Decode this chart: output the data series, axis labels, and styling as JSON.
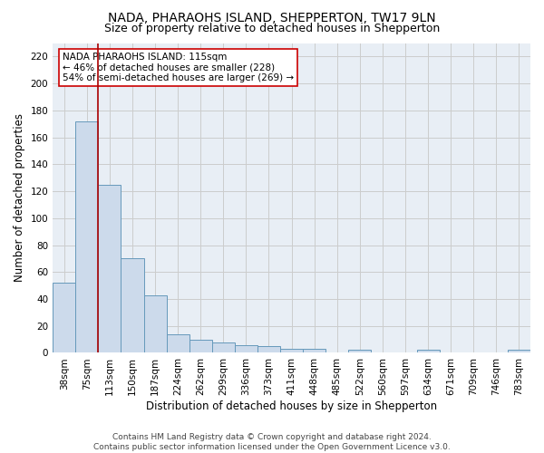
{
  "title": "NADA, PHARAOHS ISLAND, SHEPPERTON, TW17 9LN",
  "subtitle": "Size of property relative to detached houses in Shepperton",
  "xlabel": "Distribution of detached houses by size in Shepperton",
  "ylabel": "Number of detached properties",
  "bar_heights": [
    52,
    172,
    125,
    70,
    43,
    14,
    10,
    8,
    6,
    5,
    3,
    3,
    0,
    2,
    0,
    0,
    2,
    0,
    0,
    0,
    2
  ],
  "bar_labels": [
    "38sqm",
    "75sqm",
    "113sqm",
    "150sqm",
    "187sqm",
    "224sqm",
    "262sqm",
    "299sqm",
    "336sqm",
    "373sqm",
    "411sqm",
    "448sqm",
    "485sqm",
    "522sqm",
    "560sqm",
    "597sqm",
    "634sqm",
    "671sqm",
    "709sqm",
    "746sqm",
    "783sqm"
  ],
  "bar_color": "#ccdaeb",
  "bar_edge_color": "#6699bb",
  "vline_pos": 1.5,
  "vline_color": "#aa0000",
  "annotation_text": "NADA PHARAOHS ISLAND: 115sqm\n← 46% of detached houses are smaller (228)\n54% of semi-detached houses are larger (269) →",
  "annotation_box_facecolor": "#ffffff",
  "annotation_box_edgecolor": "#cc0000",
  "ylim": [
    0,
    230
  ],
  "yticks": [
    0,
    20,
    40,
    60,
    80,
    100,
    120,
    140,
    160,
    180,
    200,
    220
  ],
  "grid_color": "#cccccc",
  "bg_color": "#e8eef5",
  "footer_line1": "Contains HM Land Registry data © Crown copyright and database right 2024.",
  "footer_line2": "Contains public sector information licensed under the Open Government Licence v3.0.",
  "title_fontsize": 10,
  "subtitle_fontsize": 9,
  "xlabel_fontsize": 8.5,
  "ylabel_fontsize": 8.5,
  "tick_fontsize": 7.5,
  "annotation_fontsize": 7.5,
  "footer_fontsize": 6.5
}
